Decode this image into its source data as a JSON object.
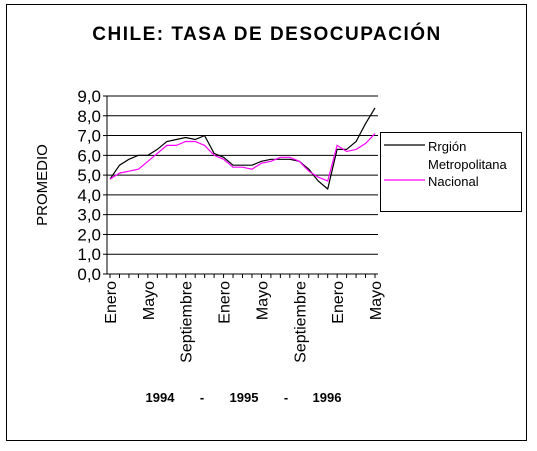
{
  "chart_data": {
    "type": "line",
    "title": "CHILE: TASA DE DESOCUPACIÓN",
    "ylabel": "PROMEDIO",
    "ylim": [
      0,
      9
    ],
    "ytick_step": 1,
    "ytick_labels": [
      "0,0",
      "1,0",
      "2,0",
      "3,0",
      "4,0",
      "5,0",
      "6,0",
      "7,0",
      "8,0",
      "9,0"
    ],
    "grid": true,
    "legend_position": "right",
    "xtick_labels": [
      {
        "index": 0,
        "label": "Enero"
      },
      {
        "index": 4,
        "label": "Mayo"
      },
      {
        "index": 8,
        "label": "Septiembre"
      },
      {
        "index": 12,
        "label": "Enero"
      },
      {
        "index": 16,
        "label": "Mayo"
      },
      {
        "index": 20,
        "label": "Septiembre"
      },
      {
        "index": 24,
        "label": "Enero"
      },
      {
        "index": 28,
        "label": "Mayo"
      }
    ],
    "period_labels": [
      "1994",
      "-",
      "1995",
      "-",
      "1996"
    ],
    "series": [
      {
        "name": "Rrgión Metropolitana",
        "color": "#000000",
        "values": [
          4.8,
          5.5,
          5.8,
          6.0,
          6.0,
          6.3,
          6.7,
          6.8,
          6.9,
          6.8,
          7.0,
          6.1,
          5.9,
          5.5,
          5.5,
          5.5,
          5.7,
          5.8,
          5.8,
          5.8,
          5.7,
          5.3,
          4.7,
          4.3,
          6.3,
          6.3,
          6.7,
          7.6,
          8.4
        ]
      },
      {
        "name": "Nacional",
        "color": "#ff00ff",
        "values": [
          4.8,
          5.1,
          5.2,
          5.3,
          5.7,
          6.1,
          6.5,
          6.5,
          6.7,
          6.7,
          6.5,
          6.0,
          5.8,
          5.4,
          5.4,
          5.3,
          5.6,
          5.7,
          5.9,
          5.9,
          5.7,
          5.2,
          4.9,
          4.7,
          6.5,
          6.2,
          6.3,
          6.6,
          7.1
        ]
      }
    ]
  }
}
